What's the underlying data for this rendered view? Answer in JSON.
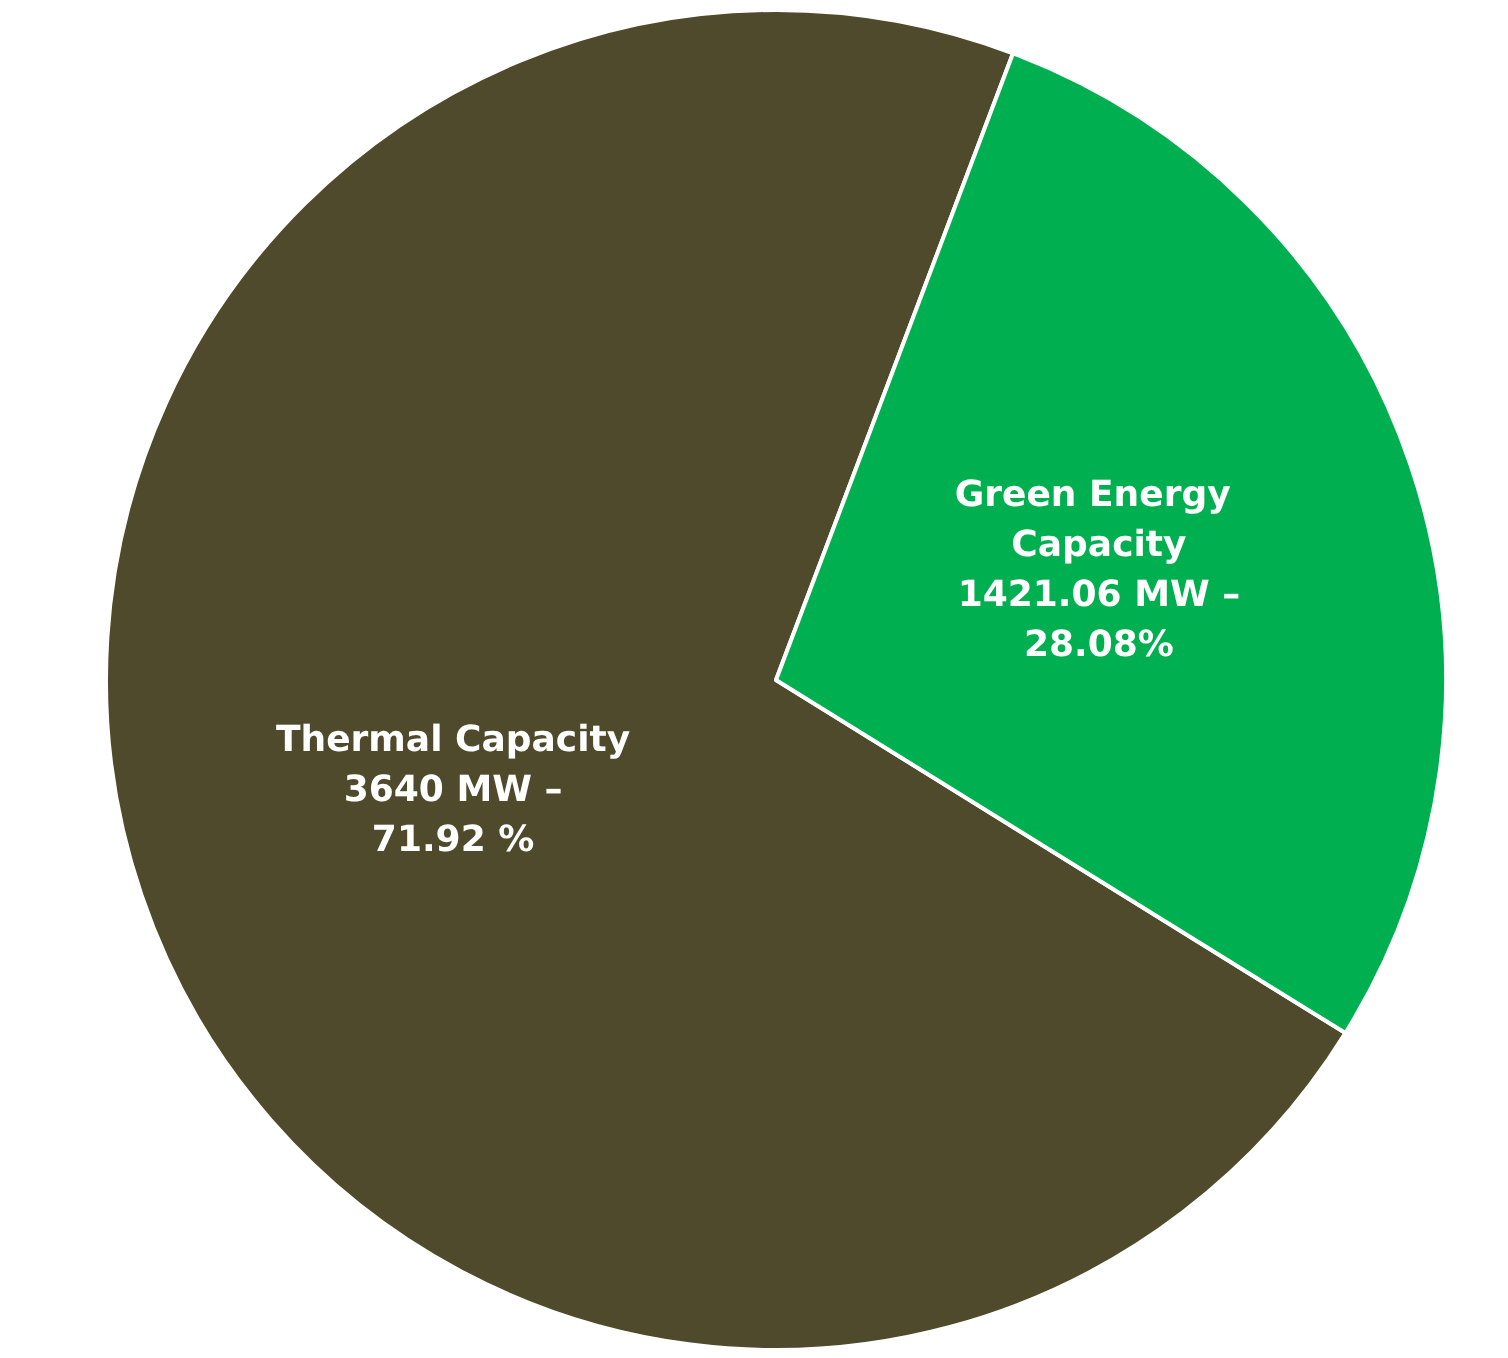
{
  "chart_data": {
    "type": "pie",
    "categories": [
      "Thermal Capacity",
      "Green Energy Capacity"
    ],
    "values": [
      3640,
      1421.06
    ],
    "colors": [
      "#4f4a2b",
      "#00b050"
    ],
    "value_labels": [
      "3640 MW –\n71.92 %",
      "1421.06 MW –\n28.08%"
    ],
    "legend": false
  }
}
